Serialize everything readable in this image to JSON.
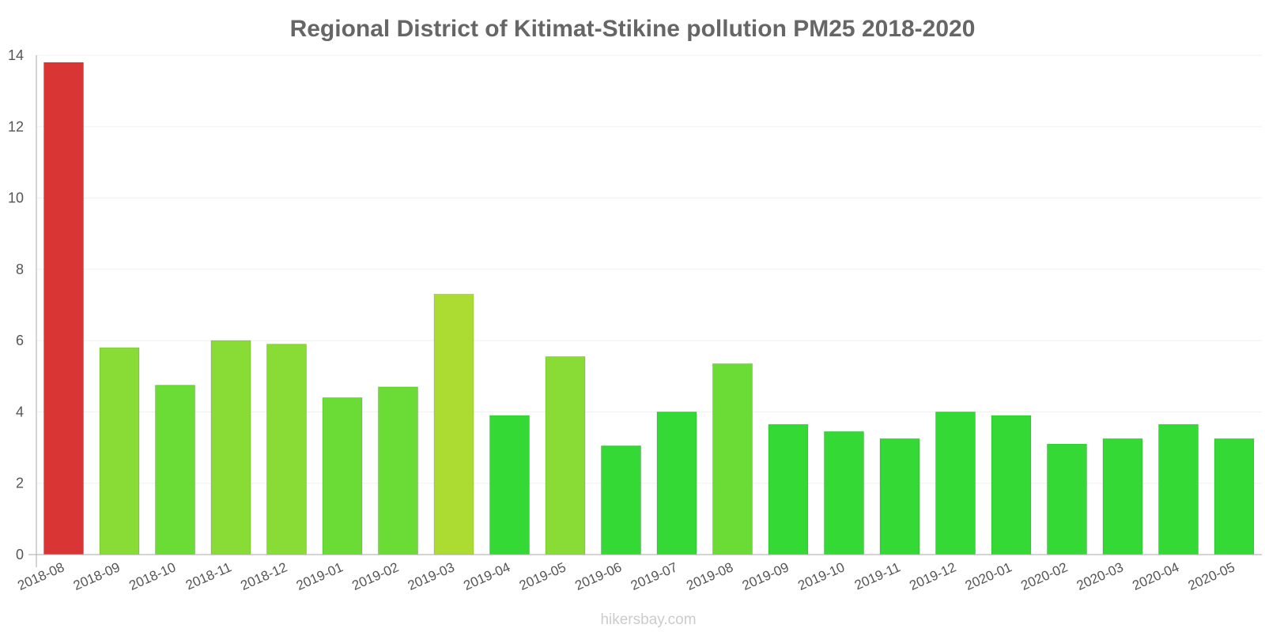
{
  "chart_data": {
    "type": "bar",
    "title": "Regional District of Kitimat-Stikine pollution PM25 2018-2020",
    "xlabel": "",
    "ylabel": "",
    "ylim": [
      0,
      14
    ],
    "yticks": [
      "0",
      "2",
      "4",
      "6",
      "8",
      "10",
      "12",
      "14"
    ],
    "categories": [
      "2018-08",
      "2018-09",
      "2018-10",
      "2018-11",
      "2018-12",
      "2019-01",
      "2019-02",
      "2019-03",
      "2019-04",
      "2019-05",
      "2019-06",
      "2019-07",
      "2019-08",
      "2019-09",
      "2019-10",
      "2019-11",
      "2019-12",
      "2020-01",
      "2020-02",
      "2020-03",
      "2020-04",
      "2020-05"
    ],
    "values": [
      13.8,
      5.8,
      4.75,
      6.0,
      5.9,
      4.4,
      4.7,
      7.3,
      3.9,
      5.55,
      3.05,
      4.0,
      5.35,
      3.65,
      3.45,
      3.25,
      4.0,
      3.9,
      3.1,
      3.25,
      3.65,
      3.25
    ],
    "colors": [
      "#d93535",
      "#89dc35",
      "#6adc35",
      "#89dc35",
      "#89dc35",
      "#6adc35",
      "#6adc35",
      "#acdc32",
      "#35d935",
      "#89dc35",
      "#35d935",
      "#35d935",
      "#6adc35",
      "#35d935",
      "#35d935",
      "#35d935",
      "#35d935",
      "#35d935",
      "#35d935",
      "#35d935",
      "#35d935",
      "#35d935"
    ],
    "grid": true,
    "legend": "none"
  },
  "watermark": "hikersbay.com",
  "style": {
    "axis_color": "#aaaaaa",
    "grid_color": "#f0f0f0"
  }
}
